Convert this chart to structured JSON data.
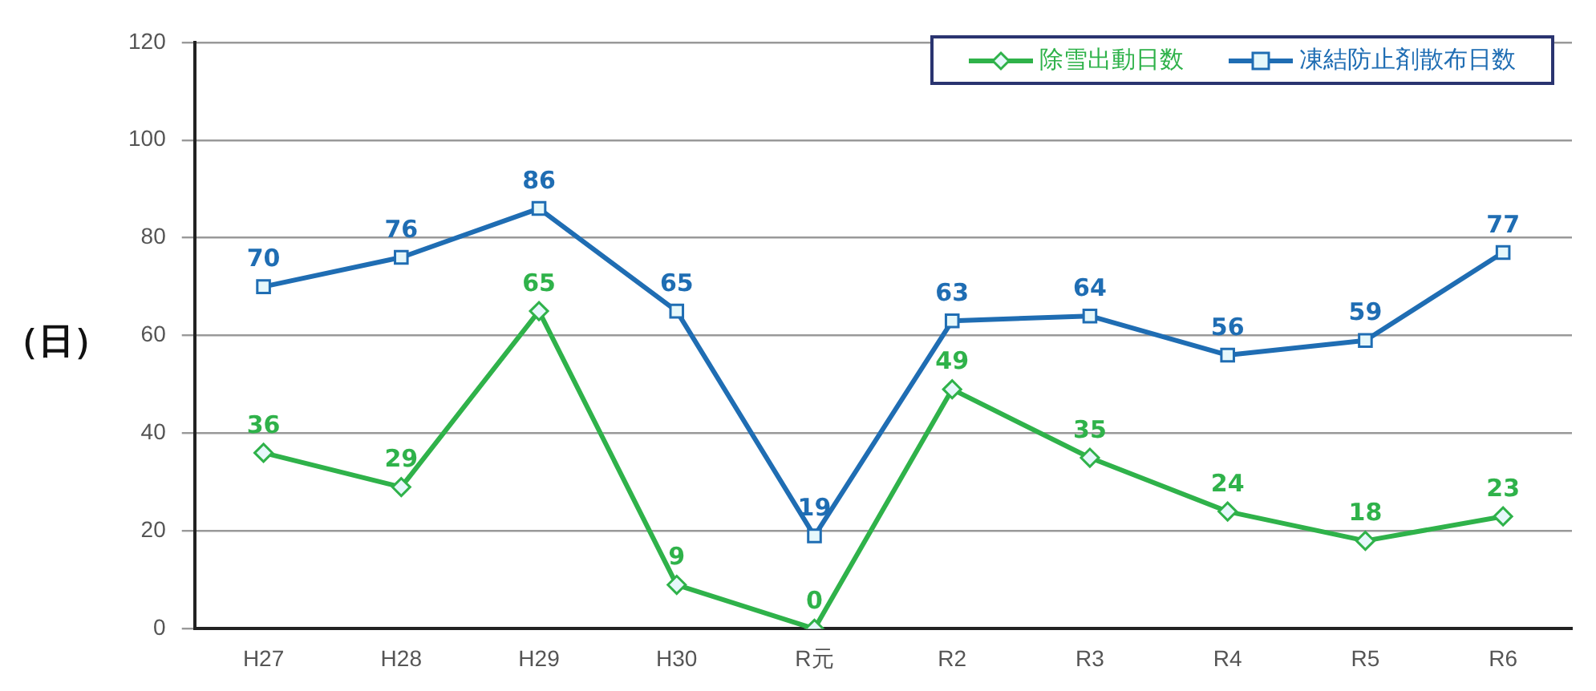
{
  "chart_data": {
    "type": "line",
    "ylabel": "（日）",
    "categories": [
      "H27",
      "H28",
      "H29",
      "H30",
      "R元",
      "R2",
      "R3",
      "R4",
      "R5",
      "R6"
    ],
    "series": [
      {
        "name": "除雪出動日数",
        "color": "#2fb24a",
        "marker": "diamond",
        "values": [
          36,
          29,
          65,
          9,
          0,
          49,
          35,
          24,
          18,
          23
        ]
      },
      {
        "name": "凍結防止剤散布日数",
        "color": "#1f6db3",
        "marker": "square",
        "values": [
          70,
          76,
          86,
          65,
          19,
          63,
          64,
          56,
          59,
          77
        ]
      }
    ],
    "ylim": [
      0,
      120
    ],
    "yticks": [
      0,
      20,
      40,
      60,
      80,
      100,
      120
    ],
    "grid": "y",
    "legend": "top right",
    "data_labels": true,
    "line_style": "solid"
  }
}
